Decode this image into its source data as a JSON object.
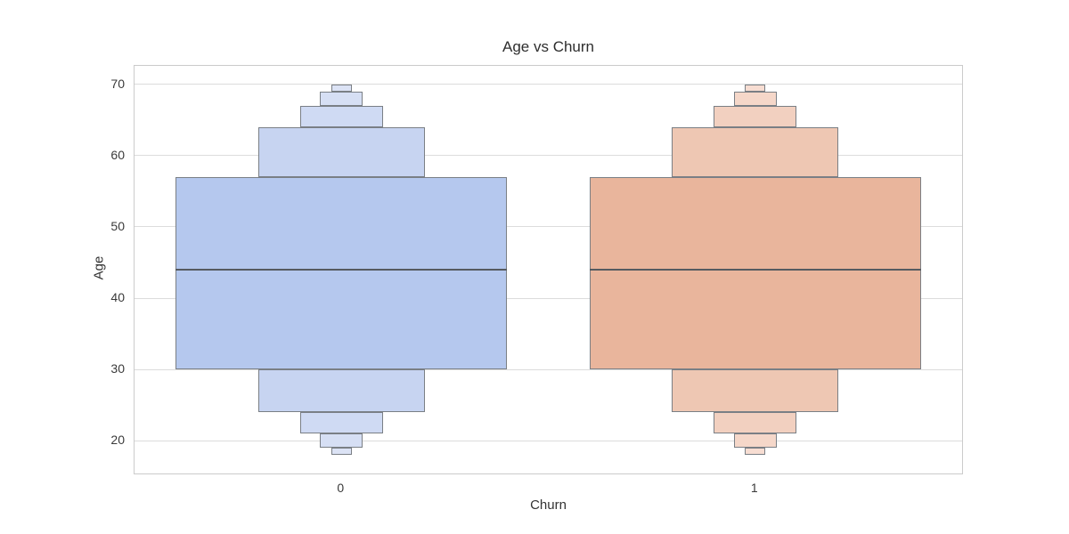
{
  "chart_data": {
    "type": "boxen",
    "title": "Age vs Churn",
    "xlabel": "Churn",
    "ylabel": "Age",
    "categories": [
      "0",
      "1"
    ],
    "ylim": [
      15.4,
      72.6
    ],
    "yticks": [
      20,
      30,
      40,
      50,
      60,
      70
    ],
    "grid": "horizontal-only",
    "grid_color": "#dcdcdc",
    "spine_color": "#cbcbcb",
    "edge_color": "#7a7f85",
    "median_color": "#565b60",
    "box_width_frac": 0.8,
    "series": [
      {
        "name": "0",
        "median": 44,
        "min": 18,
        "max": 70,
        "q1": 30,
        "q3": 57,
        "colors": [
          "#b5c8ee",
          "#c7d4f1",
          "#cfdaf3",
          "#d6dff4",
          "#dce3f5"
        ],
        "boxes": [
          {
            "lo": 30,
            "hi": 57,
            "wf": 1.0,
            "level": 0
          },
          {
            "lo": 57,
            "hi": 64,
            "wf": 0.503,
            "level": 1
          },
          {
            "lo": 24,
            "hi": 30,
            "wf": 0.503,
            "level": 1
          },
          {
            "lo": 64,
            "hi": 67,
            "wf": 0.251,
            "level": 2
          },
          {
            "lo": 21,
            "hi": 24,
            "wf": 0.251,
            "level": 2
          },
          {
            "lo": 67,
            "hi": 69,
            "wf": 0.13,
            "level": 3
          },
          {
            "lo": 19,
            "hi": 21,
            "wf": 0.13,
            "level": 3
          },
          {
            "lo": 69,
            "hi": 70,
            "wf": 0.063,
            "level": 4
          },
          {
            "lo": 18,
            "hi": 19,
            "wf": 0.063,
            "level": 4
          }
        ]
      },
      {
        "name": "1",
        "median": 44,
        "min": 18,
        "max": 70,
        "q1": 30,
        "q3": 57,
        "colors": [
          "#e9b59c",
          "#eec7b3",
          "#f2d0c0",
          "#f5d7c9",
          "#f7ddd2"
        ],
        "boxes": [
          {
            "lo": 30,
            "hi": 57,
            "wf": 1.0,
            "level": 0
          },
          {
            "lo": 57,
            "hi": 64,
            "wf": 0.503,
            "level": 1
          },
          {
            "lo": 24,
            "hi": 30,
            "wf": 0.503,
            "level": 1
          },
          {
            "lo": 64,
            "hi": 67,
            "wf": 0.251,
            "level": 2
          },
          {
            "lo": 21,
            "hi": 24,
            "wf": 0.251,
            "level": 2
          },
          {
            "lo": 67,
            "hi": 69,
            "wf": 0.13,
            "level": 3
          },
          {
            "lo": 19,
            "hi": 21,
            "wf": 0.13,
            "level": 3
          },
          {
            "lo": 69,
            "hi": 70,
            "wf": 0.063,
            "level": 4
          },
          {
            "lo": 18,
            "hi": 19,
            "wf": 0.063,
            "level": 4
          }
        ]
      }
    ]
  }
}
